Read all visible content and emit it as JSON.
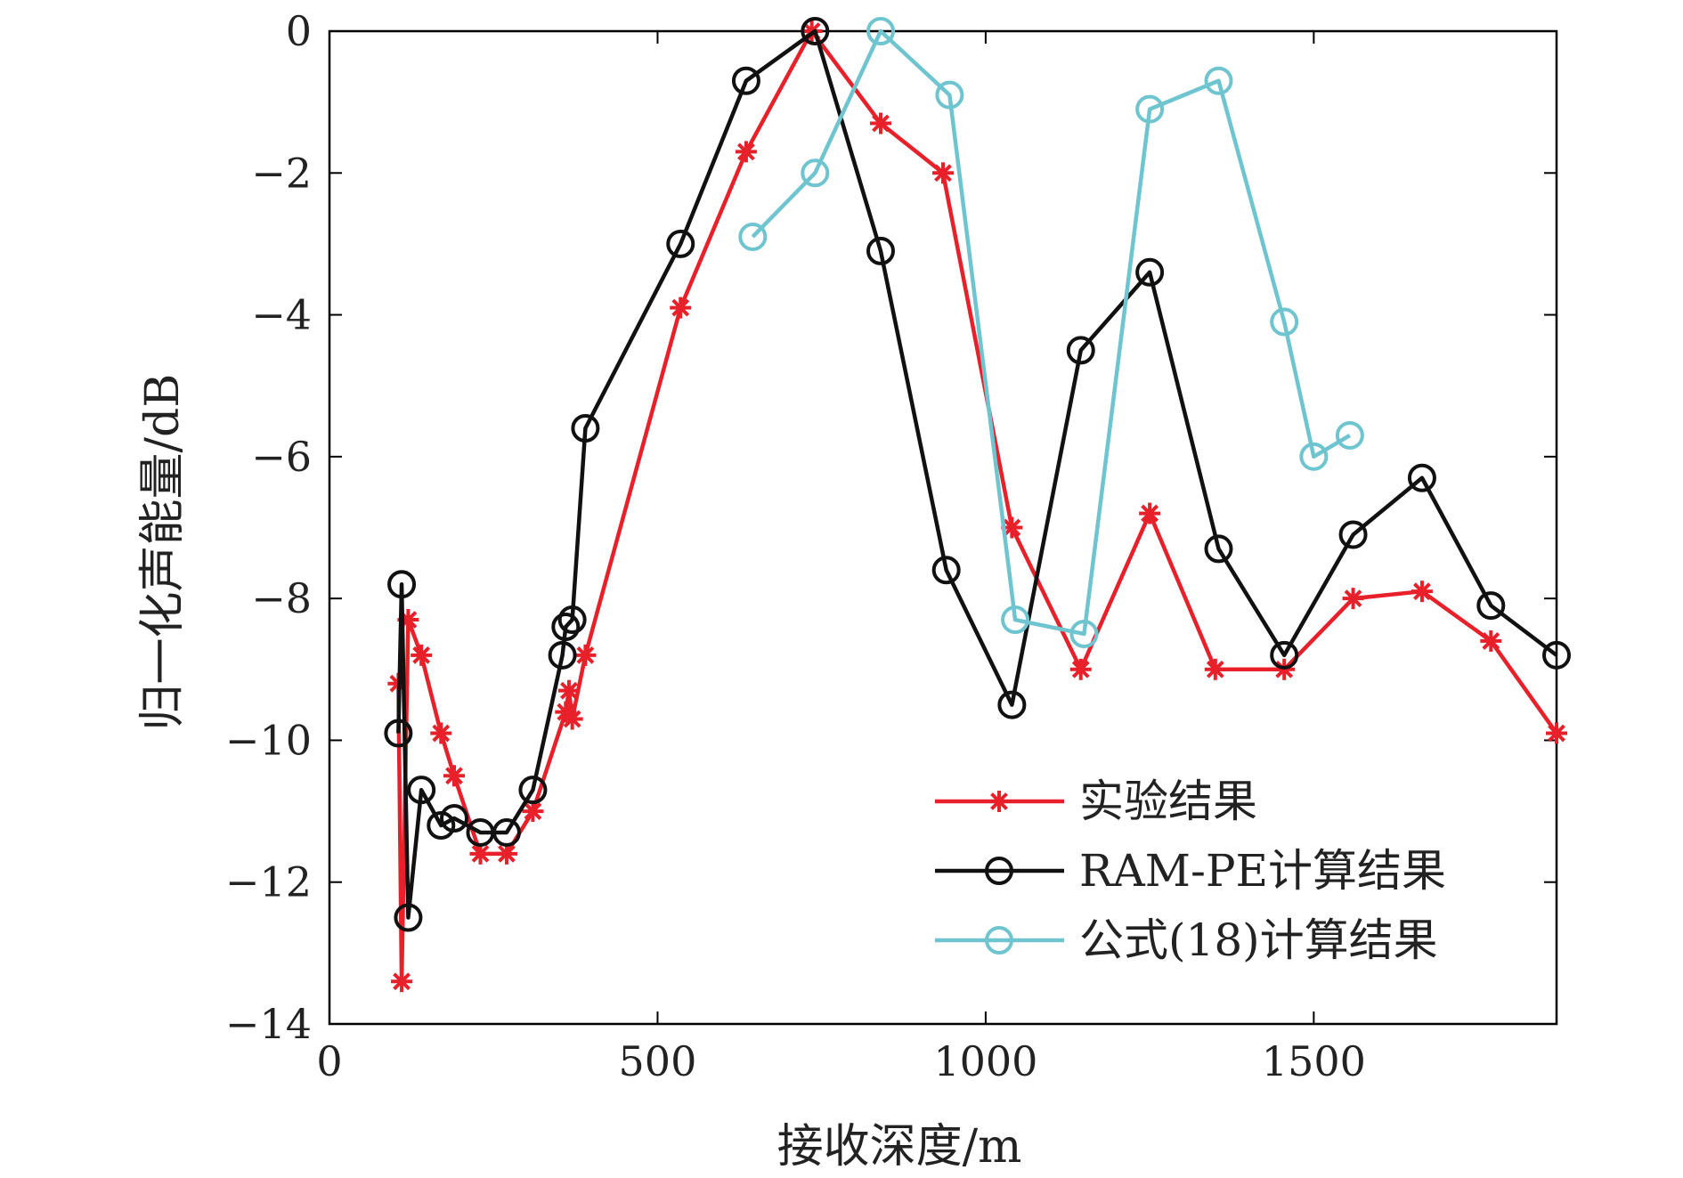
{
  "chart_data": {
    "type": "line",
    "xlabel": "接收深度/m",
    "ylabel": "归一化声能量/dB",
    "xlim": [
      0,
      1870
    ],
    "ylim": [
      -14,
      0
    ],
    "xticks": [
      0,
      500,
      1000,
      1500
    ],
    "xtick_labels": [
      "0",
      "500",
      "1000",
      "1500"
    ],
    "yticks": [
      0,
      -2,
      -4,
      -6,
      -8,
      -10,
      -12,
      -14
    ],
    "ytick_labels": [
      "0",
      "−2",
      "−4",
      "−6",
      "−8",
      "−10",
      "−12",
      "−14"
    ],
    "grid": false,
    "legend_position": "bottom-right",
    "series": [
      {
        "name": "实验结果",
        "color": "#e8202a",
        "marker": "asterisk",
        "x": [
          105,
          110,
          120,
          140,
          170,
          190,
          230,
          270,
          310,
          360,
          365,
          370,
          390,
          535,
          635,
          735,
          840,
          935,
          1040,
          1145,
          1250,
          1350,
          1455,
          1560,
          1665,
          1770,
          1870
        ],
        "y": [
          -9.2,
          -13.4,
          -8.3,
          -8.8,
          -9.9,
          -10.5,
          -11.6,
          -11.6,
          -11.0,
          -9.6,
          -9.3,
          -9.7,
          -8.8,
          -3.9,
          -1.7,
          0.0,
          -1.3,
          -2.0,
          -7.0,
          -9.0,
          -6.8,
          -9.0,
          -9.0,
          -8.0,
          -7.9,
          -8.6,
          -9.9
        ]
      },
      {
        "name": "RAM-PE计算结果",
        "color": "#111111",
        "marker": "circle",
        "x": [
          105,
          110,
          120,
          140,
          170,
          190,
          230,
          270,
          310,
          355,
          360,
          370,
          390,
          535,
          635,
          740,
          840,
          940,
          1040,
          1145,
          1250,
          1355,
          1455,
          1560,
          1665,
          1770,
          1870
        ],
        "y": [
          -9.9,
          -7.8,
          -12.5,
          -10.7,
          -11.2,
          -11.1,
          -11.3,
          -11.3,
          -10.7,
          -8.8,
          -8.4,
          -8.3,
          -5.6,
          -3.0,
          -0.7,
          0.0,
          -3.1,
          -7.6,
          -9.5,
          -4.5,
          -3.4,
          -7.3,
          -8.8,
          -7.1,
          -6.3,
          -8.1,
          -8.8
        ]
      },
      {
        "name": "公式(18)计算结果",
        "color": "#6ec5d0",
        "marker": "circle",
        "x": [
          645,
          740,
          840,
          945,
          1045,
          1150,
          1250,
          1355,
          1455,
          1500,
          1555
        ],
        "y": [
          -2.9,
          -2.0,
          0.0,
          -0.9,
          -8.3,
          -8.5,
          -1.1,
          -0.7,
          -4.1,
          -6.0,
          -5.7
        ]
      }
    ]
  }
}
